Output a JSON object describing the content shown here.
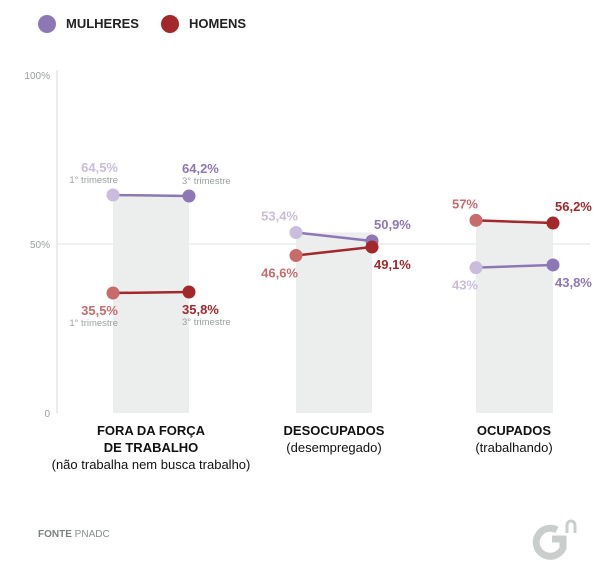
{
  "chart_data": {
    "type": "dumbbell",
    "title": "",
    "ylim": [
      0,
      100
    ],
    "yticks": [
      "0",
      "50%",
      "100%"
    ],
    "period_labels": [
      "1° trimestre",
      "3° trimestre"
    ],
    "legend": [
      {
        "name": "MULHERES",
        "color": "#8d77b5"
      },
      {
        "name": "HOMENS",
        "color": "#a3282c"
      }
    ],
    "categories": [
      {
        "title": "FORA DA FORÇA DE TRABALHO",
        "subtitle": "(não trabalha nem busca trabalho)"
      },
      {
        "title": "DESOCUPADOS",
        "subtitle": "(desempregado)"
      },
      {
        "title": "OCUPADOS",
        "subtitle": "(trabalhando)"
      }
    ],
    "series": [
      {
        "name": "MULHERES",
        "values_q1": [
          64.5,
          53.4,
          43.0
        ],
        "values_q3": [
          64.2,
          50.9,
          43.8
        ],
        "labels_q1": [
          "64,5%",
          "53,4%",
          "43%"
        ],
        "labels_q3": [
          "64,2%",
          "50,9%",
          "43,8%"
        ],
        "color_q1": "#c9bcdc",
        "color_q3": "#8d77b5"
      },
      {
        "name": "HOMENS",
        "values_q1": [
          35.5,
          46.6,
          57.0
        ],
        "values_q3": [
          35.8,
          49.1,
          56.2
        ],
        "labels_q1": [
          "35,5%",
          "46,6%",
          "57%"
        ],
        "labels_q3": [
          "35,8%",
          "49,1%",
          "56,2%"
        ],
        "color_q1": "#c76b6b",
        "color_q3": "#a3282c"
      }
    ]
  },
  "source": {
    "label": "FONTE",
    "value": "PNADC"
  },
  "logo_text": "G1"
}
